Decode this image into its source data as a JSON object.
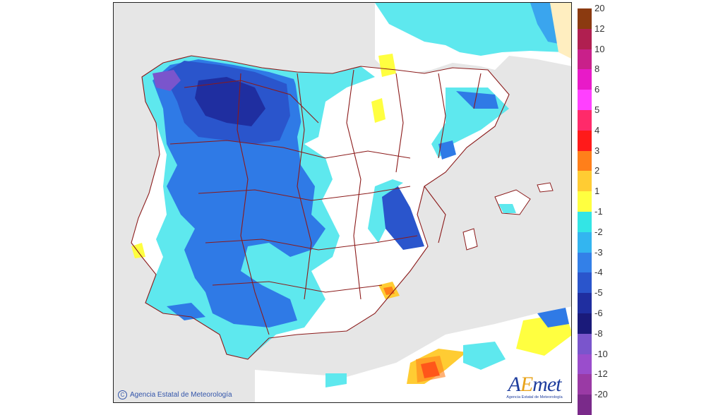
{
  "map": {
    "copyright_symbol": "C",
    "copyright_text": "Agencia Estatal de Meteorología",
    "logo_text_a": "A",
    "logo_text_e": "E",
    "logo_text_rest": "met",
    "logo_subtitle": "Agencia Estatal de Meteorología",
    "colors": {
      "land_neutral": "#ffffff",
      "sea": "#e6e6e6",
      "borders": "#8b1a1a"
    }
  },
  "legend": {
    "warm": [
      {
        "label": "20",
        "color": "#8b3a10"
      },
      {
        "label": "12",
        "color": "#b01f50"
      },
      {
        "label": "10",
        "color": "#c9208a"
      },
      {
        "label": "8",
        "color": "#e81ac8"
      },
      {
        "label": "6",
        "color": "#ff40ff"
      },
      {
        "label": "5",
        "color": "#ff2a6a"
      },
      {
        "label": "4",
        "color": "#ff1a1a"
      },
      {
        "label": "3",
        "color": "#ff7f1a"
      },
      {
        "label": "2",
        "color": "#ffcc33"
      },
      {
        "label": "1",
        "color": "#ffff40"
      }
    ],
    "cold": [
      {
        "label": "-1",
        "color": "#33e5e5"
      },
      {
        "label": "-2",
        "color": "#33b5f0"
      },
      {
        "label": "-3",
        "color": "#3380e8"
      },
      {
        "label": "-4",
        "color": "#2a55cc"
      },
      {
        "label": "-5",
        "color": "#1f2ea0"
      },
      {
        "label": "-6",
        "color": "#1a1a7a"
      },
      {
        "label": "-8",
        "color": "#7a55cc"
      },
      {
        "label": "-10",
        "color": "#9a4dcc"
      },
      {
        "label": "-12",
        "color": "#9a3aa5"
      },
      {
        "label": "-20",
        "color": "#7a2a8a"
      }
    ]
  }
}
